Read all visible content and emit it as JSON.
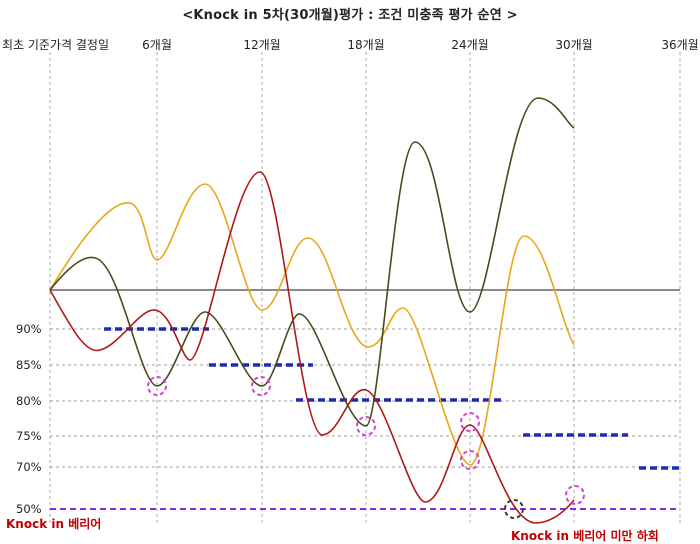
{
  "title": "<Knock in 5차(30개월)평가 : 조건 미충족 평가 순연 >",
  "columns": [
    "최초 기준가격 결정일",
    "6개월",
    "12개월",
    "18개월",
    "24개월",
    "30개월",
    "36개월"
  ],
  "levels": [
    "90%",
    "85%",
    "80%",
    "75%",
    "70%",
    "50%"
  ],
  "annotations": {
    "knock_in_barrier": "Knock in 베리어",
    "knock_in_breach": "Knock in 베리어 미만 하회"
  },
  "colors": {
    "series_orange": "#e6a817",
    "series_olive": "#4b4a1c",
    "series_red": "#b01818",
    "barrier_steps": "#1f2bb0",
    "barrier_50": "#8a2be2",
    "evaluation_circle": "#d43fd4",
    "breach_circle": "#3b3b2b",
    "annotation_text": "#c00000"
  }
}
